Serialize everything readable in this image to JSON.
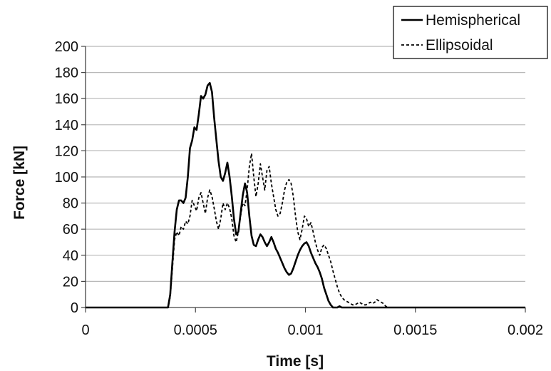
{
  "chart_data": {
    "type": "line",
    "xlabel": "Time [s]",
    "ylabel": "Force [kN]",
    "xlim": [
      0,
      0.002
    ],
    "ylim": [
      0,
      200
    ],
    "x_ticks": [
      {
        "value": 0,
        "label": "0"
      },
      {
        "value": 0.0005,
        "label": "0.0005"
      },
      {
        "value": 0.001,
        "label": "0.001"
      },
      {
        "value": 0.0015,
        "label": "0.0015"
      },
      {
        "value": 0.002,
        "label": "0.002"
      }
    ],
    "y_ticks": [
      {
        "value": 0,
        "label": "0"
      },
      {
        "value": 20,
        "label": "20"
      },
      {
        "value": 40,
        "label": "40"
      },
      {
        "value": 60,
        "label": "60"
      },
      {
        "value": 80,
        "label": "80"
      },
      {
        "value": 100,
        "label": "100"
      },
      {
        "value": 120,
        "label": "120"
      },
      {
        "value": 140,
        "label": "140"
      },
      {
        "value": 160,
        "label": "160"
      },
      {
        "value": 180,
        "label": "180"
      },
      {
        "value": 200,
        "label": "200"
      }
    ],
    "grid": "horizontal",
    "legend_position": "top-right",
    "series": [
      {
        "name": "Hemispherical",
        "style": "solid",
        "color": "#000000",
        "points": [
          [
            0,
            0
          ],
          [
            0.000375,
            0
          ],
          [
            0.000385,
            10
          ],
          [
            0.000395,
            35
          ],
          [
            0.000405,
            58
          ],
          [
            0.000415,
            75
          ],
          [
            0.000425,
            82
          ],
          [
            0.000435,
            82
          ],
          [
            0.000445,
            80
          ],
          [
            0.000455,
            84
          ],
          [
            0.000465,
            100
          ],
          [
            0.000475,
            122
          ],
          [
            0.000485,
            128
          ],
          [
            0.000495,
            138
          ],
          [
            0.000505,
            136
          ],
          [
            0.000515,
            148
          ],
          [
            0.000525,
            162
          ],
          [
            0.000535,
            160
          ],
          [
            0.000545,
            163
          ],
          [
            0.000555,
            170
          ],
          [
            0.000565,
            172
          ],
          [
            0.000575,
            165
          ],
          [
            0.000585,
            145
          ],
          [
            0.000595,
            128
          ],
          [
            0.000605,
            112
          ],
          [
            0.000615,
            100
          ],
          [
            0.000625,
            97
          ],
          [
            0.000635,
            103
          ],
          [
            0.000645,
            111
          ],
          [
            0.000655,
            100
          ],
          [
            0.000665,
            85
          ],
          [
            0.000675,
            68
          ],
          [
            0.000685,
            56
          ],
          [
            0.000695,
            58
          ],
          [
            0.000705,
            72
          ],
          [
            0.000715,
            86
          ],
          [
            0.000725,
            95
          ],
          [
            0.000735,
            88
          ],
          [
            0.000745,
            70
          ],
          [
            0.000755,
            55
          ],
          [
            0.000765,
            48
          ],
          [
            0.000775,
            47
          ],
          [
            0.000785,
            52
          ],
          [
            0.000795,
            56
          ],
          [
            0.000805,
            54
          ],
          [
            0.000815,
            50
          ],
          [
            0.000825,
            47
          ],
          [
            0.000835,
            50
          ],
          [
            0.000845,
            54
          ],
          [
            0.000855,
            50
          ],
          [
            0.000865,
            45
          ],
          [
            0.000875,
            42
          ],
          [
            0.000885,
            38
          ],
          [
            0.000895,
            34
          ],
          [
            0.000905,
            30
          ],
          [
            0.000915,
            27
          ],
          [
            0.000925,
            25
          ],
          [
            0.000935,
            26
          ],
          [
            0.000945,
            30
          ],
          [
            0.000955,
            35
          ],
          [
            0.000965,
            40
          ],
          [
            0.000975,
            44
          ],
          [
            0.000985,
            47
          ],
          [
            0.000995,
            49
          ],
          [
            0.001005,
            50
          ],
          [
            0.001015,
            47
          ],
          [
            0.001025,
            42
          ],
          [
            0.001035,
            38
          ],
          [
            0.001045,
            34
          ],
          [
            0.001055,
            31
          ],
          [
            0.001065,
            27
          ],
          [
            0.001075,
            22
          ],
          [
            0.001085,
            15
          ],
          [
            0.001095,
            10
          ],
          [
            0.001105,
            5
          ],
          [
            0.001115,
            2
          ],
          [
            0.001125,
            0
          ],
          [
            0.001135,
            0
          ],
          [
            0.001145,
            0
          ],
          [
            0.001155,
            1
          ],
          [
            0.001165,
            0
          ],
          [
            0.001175,
            0
          ],
          [
            0.002,
            0
          ]
        ]
      },
      {
        "name": "Ellipsoidal",
        "style": "dashed",
        "color": "#000000",
        "points": [
          [
            0,
            0
          ],
          [
            0.000375,
            0
          ],
          [
            0.000385,
            8
          ],
          [
            0.000395,
            30
          ],
          [
            0.000405,
            52
          ],
          [
            0.000415,
            58
          ],
          [
            0.000425,
            55
          ],
          [
            0.000435,
            62
          ],
          [
            0.000445,
            60
          ],
          [
            0.000455,
            66
          ],
          [
            0.000465,
            64
          ],
          [
            0.000475,
            70
          ],
          [
            0.000485,
            82
          ],
          [
            0.000495,
            78
          ],
          [
            0.000505,
            74
          ],
          [
            0.000515,
            84
          ],
          [
            0.000525,
            88
          ],
          [
            0.000535,
            80
          ],
          [
            0.000545,
            72
          ],
          [
            0.000555,
            84
          ],
          [
            0.000565,
            90
          ],
          [
            0.000575,
            85
          ],
          [
            0.000585,
            76
          ],
          [
            0.000595,
            66
          ],
          [
            0.000605,
            60
          ],
          [
            0.000615,
            68
          ],
          [
            0.000625,
            80
          ],
          [
            0.000635,
            75
          ],
          [
            0.000645,
            80
          ],
          [
            0.000655,
            76
          ],
          [
            0.000665,
            68
          ],
          [
            0.000675,
            55
          ],
          [
            0.000685,
            50
          ],
          [
            0.000695,
            58
          ],
          [
            0.000705,
            70
          ],
          [
            0.000715,
            80
          ],
          [
            0.000725,
            78
          ],
          [
            0.000735,
            90
          ],
          [
            0.000745,
            108
          ],
          [
            0.000755,
            118
          ],
          [
            0.000765,
            100
          ],
          [
            0.000775,
            85
          ],
          [
            0.000785,
            95
          ],
          [
            0.000795,
            110
          ],
          [
            0.000805,
            100
          ],
          [
            0.000815,
            90
          ],
          [
            0.000825,
            105
          ],
          [
            0.000835,
            108
          ],
          [
            0.000845,
            95
          ],
          [
            0.000855,
            85
          ],
          [
            0.000865,
            75
          ],
          [
            0.000875,
            70
          ],
          [
            0.000885,
            72
          ],
          [
            0.000895,
            80
          ],
          [
            0.000905,
            90
          ],
          [
            0.000915,
            96
          ],
          [
            0.000925,
            98
          ],
          [
            0.000935,
            95
          ],
          [
            0.000945,
            85
          ],
          [
            0.000955,
            70
          ],
          [
            0.000965,
            58
          ],
          [
            0.000975,
            52
          ],
          [
            0.000985,
            60
          ],
          [
            0.000995,
            70
          ],
          [
            0.001005,
            68
          ],
          [
            0.001015,
            62
          ],
          [
            0.001025,
            65
          ],
          [
            0.001035,
            58
          ],
          [
            0.001045,
            50
          ],
          [
            0.001055,
            44
          ],
          [
            0.001065,
            40
          ],
          [
            0.001075,
            46
          ],
          [
            0.001085,
            48
          ],
          [
            0.001095,
            45
          ],
          [
            0.001105,
            40
          ],
          [
            0.001115,
            35
          ],
          [
            0.001125,
            28
          ],
          [
            0.001135,
            22
          ],
          [
            0.001145,
            16
          ],
          [
            0.001155,
            11
          ],
          [
            0.001165,
            8
          ],
          [
            0.001175,
            6
          ],
          [
            0.001185,
            5
          ],
          [
            0.001195,
            4
          ],
          [
            0.001205,
            3
          ],
          [
            0.001215,
            2
          ],
          [
            0.001225,
            2
          ],
          [
            0.001235,
            3
          ],
          [
            0.001245,
            4
          ],
          [
            0.001255,
            3
          ],
          [
            0.001265,
            2
          ],
          [
            0.001275,
            2
          ],
          [
            0.001285,
            3
          ],
          [
            0.001295,
            4
          ],
          [
            0.001305,
            3
          ],
          [
            0.001315,
            4
          ],
          [
            0.001325,
            6
          ],
          [
            0.001335,
            5
          ],
          [
            0.001345,
            4
          ],
          [
            0.001355,
            3
          ],
          [
            0.001365,
            1
          ],
          [
            0.001375,
            0
          ],
          [
            0.002,
            0
          ]
        ]
      }
    ]
  }
}
